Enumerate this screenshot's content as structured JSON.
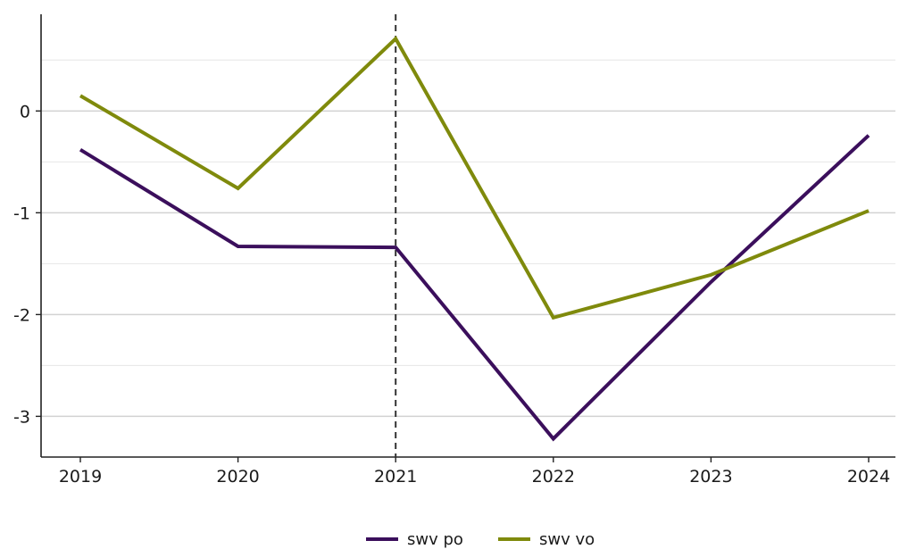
{
  "chart_data": {
    "type": "line",
    "title": "",
    "xlabel": "",
    "ylabel": "",
    "x": [
      "2019",
      "2020",
      "2021",
      "2022",
      "2023",
      "2024"
    ],
    "series": [
      {
        "name": "swv po",
        "color": "#3b0f5c",
        "values": [
          -0.38,
          -1.33,
          -1.34,
          -3.22,
          -1.68,
          -0.24
        ]
      },
      {
        "name": "swv vo",
        "color": "#7f8a0c",
        "values": [
          0.15,
          -0.76,
          0.71,
          -2.03,
          -1.61,
          -0.98
        ]
      }
    ],
    "y_ticks": [
      0,
      -1,
      -2,
      -3
    ],
    "ylim": [
      -3.4,
      0.95
    ],
    "vertical_reference": {
      "x": "2021",
      "style": "dashed"
    },
    "grid": true,
    "legend_position": "bottom"
  }
}
